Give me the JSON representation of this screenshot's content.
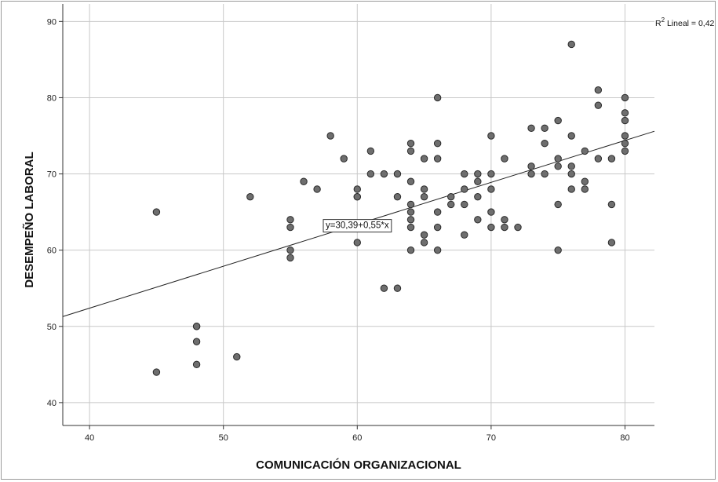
{
  "chart_data": {
    "type": "scatter",
    "xlabel": "COMUNICACIÓN ORGANIZACIONAL",
    "ylabel": "DESEMPEÑO LABORAL",
    "xlim": [
      38,
      82.2
    ],
    "ylim": [
      37,
      92.3
    ],
    "x_ticks": [
      40,
      50,
      60,
      70,
      80
    ],
    "y_ticks": [
      40,
      50,
      60,
      70,
      80,
      90
    ],
    "grid": true,
    "colors": {
      "point": "#6e6e6e",
      "point_edge": "#2a2a2a",
      "grid": "#c8c8c8",
      "line": "#222222"
    },
    "fit_line": {
      "intercept": 30.39,
      "slope": 0.55,
      "label": "y=30,39+0,55*x",
      "label_anchor": [
        60,
        63.3
      ]
    },
    "r2_label": {
      "prefix": "R",
      "sup": "2",
      "text": " Lineal = 0,42"
    },
    "points": [
      [
        45,
        65
      ],
      [
        45,
        44
      ],
      [
        48,
        50
      ],
      [
        48,
        50
      ],
      [
        48,
        48
      ],
      [
        48,
        45
      ],
      [
        51,
        46
      ],
      [
        52,
        67
      ],
      [
        55,
        64
      ],
      [
        55,
        63
      ],
      [
        55,
        60
      ],
      [
        55,
        59
      ],
      [
        56,
        69
      ],
      [
        57,
        68
      ],
      [
        58,
        75
      ],
      [
        59,
        72
      ],
      [
        60,
        68
      ],
      [
        60,
        67
      ],
      [
        60,
        67
      ],
      [
        60,
        61
      ],
      [
        61,
        73
      ],
      [
        61,
        70
      ],
      [
        62,
        70
      ],
      [
        62,
        55
      ],
      [
        63,
        70
      ],
      [
        63,
        67
      ],
      [
        63,
        55
      ],
      [
        64,
        74
      ],
      [
        64,
        73
      ],
      [
        64,
        69
      ],
      [
        64,
        66
      ],
      [
        64,
        65
      ],
      [
        64,
        64
      ],
      [
        64,
        63
      ],
      [
        64,
        60
      ],
      [
        65,
        72
      ],
      [
        65,
        68
      ],
      [
        65,
        67
      ],
      [
        65,
        62
      ],
      [
        65,
        61
      ],
      [
        66,
        80
      ],
      [
        66,
        74
      ],
      [
        66,
        72
      ],
      [
        66,
        65
      ],
      [
        66,
        63
      ],
      [
        66,
        60
      ],
      [
        67,
        67
      ],
      [
        67,
        66
      ],
      [
        68,
        70
      ],
      [
        68,
        68
      ],
      [
        68,
        66
      ],
      [
        68,
        62
      ],
      [
        69,
        70
      ],
      [
        69,
        69
      ],
      [
        69,
        67
      ],
      [
        69,
        64
      ],
      [
        70,
        75
      ],
      [
        70,
        70
      ],
      [
        70,
        68
      ],
      [
        70,
        65
      ],
      [
        70,
        63
      ],
      [
        71,
        72
      ],
      [
        71,
        64
      ],
      [
        71,
        63
      ],
      [
        72,
        63
      ],
      [
        73,
        76
      ],
      [
        73,
        71
      ],
      [
        73,
        70
      ],
      [
        74,
        76
      ],
      [
        74,
        74
      ],
      [
        74,
        70
      ],
      [
        75,
        77
      ],
      [
        75,
        72
      ],
      [
        75,
        71
      ],
      [
        75,
        66
      ],
      [
        75,
        60
      ],
      [
        76,
        87
      ],
      [
        76,
        75
      ],
      [
        76,
        71
      ],
      [
        76,
        70
      ],
      [
        76,
        68
      ],
      [
        77,
        73
      ],
      [
        77,
        69
      ],
      [
        77,
        68
      ],
      [
        78,
        81
      ],
      [
        78,
        79
      ],
      [
        78,
        72
      ],
      [
        79,
        72
      ],
      [
        79,
        66
      ],
      [
        79,
        61
      ],
      [
        80,
        80
      ],
      [
        80,
        78
      ],
      [
        80,
        77
      ],
      [
        80,
        75
      ],
      [
        80,
        74
      ],
      [
        80,
        73
      ]
    ]
  }
}
